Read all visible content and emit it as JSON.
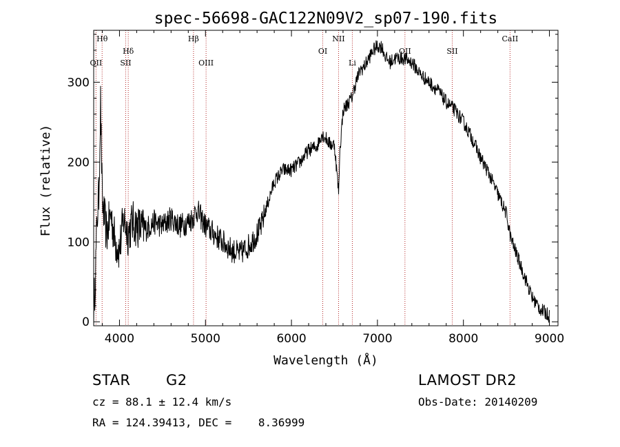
{
  "chart_data": {
    "type": "line",
    "title": "spec-56698-GAC122N09V2_sp07-190.fits",
    "xlabel": "Wavelength (Å)",
    "ylabel": "Flux (relative)",
    "xlim": [
      3700,
      9100
    ],
    "ylim": [
      -5,
      365
    ],
    "xticks": [
      4000,
      5000,
      6000,
      7000,
      8000,
      9000
    ],
    "yticks": [
      0,
      100,
      200,
      300
    ],
    "line_color": "#000000",
    "marker_color": "#b22222",
    "spectrum": {
      "x": [
        3700,
        3720,
        3740,
        3760,
        3780,
        3800,
        3850,
        3900,
        3950,
        4000,
        4050,
        4100,
        4150,
        4200,
        4300,
        4400,
        4500,
        4600,
        4700,
        4800,
        4850,
        4900,
        4950,
        5000,
        5100,
        5200,
        5300,
        5400,
        5500,
        5600,
        5650,
        5700,
        5800,
        5900,
        6000,
        6100,
        6200,
        6300,
        6350,
        6400,
        6450,
        6500,
        6550,
        6560,
        6600,
        6700,
        6750,
        6800,
        6850,
        6900,
        6950,
        7000,
        7050,
        7100,
        7150,
        7200,
        7300,
        7400,
        7500,
        7600,
        7700,
        7800,
        7900,
        8000,
        8100,
        8200,
        8300,
        8400,
        8500,
        8550,
        8600,
        8700,
        8800,
        8900,
        9000
      ],
      "y": [
        10,
        60,
        130,
        160,
        275,
        150,
        110,
        135,
        100,
        90,
        130,
        110,
        125,
        120,
        115,
        125,
        120,
        130,
        120,
        125,
        130,
        140,
        130,
        120,
        110,
        100,
        90,
        85,
        95,
        110,
        120,
        140,
        175,
        190,
        190,
        200,
        215,
        220,
        235,
        230,
        222,
        222,
        160,
        210,
        265,
        280,
        300,
        315,
        320,
        330,
        340,
        345,
        345,
        330,
        325,
        330,
        330,
        325,
        310,
        300,
        290,
        275,
        265,
        250,
        230,
        205,
        185,
        160,
        135,
        105,
        90,
        60,
        30,
        15,
        8
      ]
    },
    "line_markers": [
      {
        "label": "Hθ",
        "wavelength": 3798,
        "row": "top"
      },
      {
        "label": "OII",
        "wavelength": 3727,
        "row": "low"
      },
      {
        "label": "Hδ",
        "wavelength": 4102,
        "row": "mid"
      },
      {
        "label": "SII",
        "wavelength": 4072,
        "row": "low"
      },
      {
        "label": "Hβ",
        "wavelength": 4861,
        "row": "top"
      },
      {
        "label": "OIII",
        "wavelength": 5007,
        "row": "low"
      },
      {
        "label": "OI",
        "wavelength": 6364,
        "row": "mid"
      },
      {
        "label": "NII",
        "wavelength": 6548,
        "row": "top"
      },
      {
        "label": "Li",
        "wavelength": 6708,
        "row": "low"
      },
      {
        "label": "OII",
        "wavelength": 7320,
        "row": "mid"
      },
      {
        "label": "SII",
        "wavelength": 7870,
        "row": "mid"
      },
      {
        "label": "CaII",
        "wavelength": 8542,
        "row": "top"
      }
    ]
  },
  "footer": {
    "class_label": "STAR",
    "subclass": "G2",
    "survey": "LAMOST DR2",
    "redshift": "cz = 88.1 ± 12.4 km/s",
    "obs_date": "Obs-Date: 20140209",
    "coords": "RA = 124.39413, DEC =    8.36999"
  }
}
